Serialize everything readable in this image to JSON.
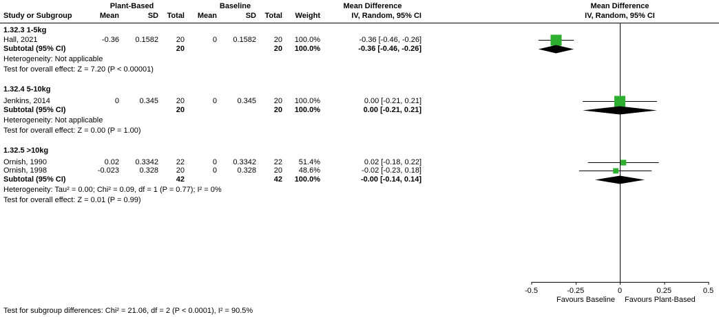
{
  "header": {
    "group_plant": "Plant-Based",
    "group_baseline": "Baseline",
    "md_stats": "Mean Difference",
    "md_plot": "Mean Difference",
    "study": "Study or Subgroup",
    "mean": "Mean",
    "sd": "SD",
    "total": "Total",
    "weight": "Weight",
    "ci_method": "IV, Random, 95% CI",
    "ci_method_plot": "IV, Random, 95% CI"
  },
  "sections": [
    {
      "title": "1.32.3 1-5kg",
      "rows": [
        {
          "study": "Hall, 2021",
          "mean1": "-0.36",
          "sd1": "0.1582",
          "total1": "20",
          "mean2": "0",
          "sd2": "0.1582",
          "total2": "20",
          "weight": "100.0%",
          "ci": "-0.36 [-0.46, -0.26]"
        }
      ],
      "subtotal": {
        "label": "Subtotal (95% CI)",
        "total1": "20",
        "total2": "20",
        "weight": "100.0%",
        "ci": "-0.36 [-0.46, -0.26]"
      },
      "heterogeneity": "Heterogeneity: Not applicable",
      "overall": "Test for overall effect: Z = 7.20 (P < 0.00001)"
    },
    {
      "title": "1.32.4 5-10kg",
      "rows": [
        {
          "study": "Jenkins, 2014",
          "mean1": "0",
          "sd1": "0.345",
          "total1": "20",
          "mean2": "0",
          "sd2": "0.345",
          "total2": "20",
          "weight": "100.0%",
          "ci": "0.00 [-0.21, 0.21]"
        }
      ],
      "subtotal": {
        "label": "Subtotal (95% CI)",
        "total1": "20",
        "total2": "20",
        "weight": "100.0%",
        "ci": "0.00 [-0.21, 0.21]"
      },
      "heterogeneity": "Heterogeneity: Not applicable",
      "overall": "Test for overall effect: Z = 0.00 (P = 1.00)"
    },
    {
      "title": "1.32.5 >10kg",
      "rows": [
        {
          "study": "Ornish, 1990",
          "mean1": "0.02",
          "sd1": "0.3342",
          "total1": "22",
          "mean2": "0",
          "sd2": "0.3342",
          "total2": "22",
          "weight": "51.4%",
          "ci": "0.02 [-0.18, 0.22]"
        },
        {
          "study": "Ornish, 1998",
          "mean1": "-0.023",
          "sd1": "0.328",
          "total1": "20",
          "mean2": "0",
          "sd2": "0.328",
          "total2": "20",
          "weight": "48.6%",
          "ci": "-0.02 [-0.23, 0.18]"
        }
      ],
      "subtotal": {
        "label": "Subtotal (95% CI)",
        "total1": "42",
        "total2": "42",
        "weight": "100.0%",
        "ci": "-0.00 [-0.14, 0.14]"
      },
      "heterogeneity": "Heterogeneity: Tau² = 0.00; Chi² = 0.09, df = 1 (P = 0.77); I² = 0%",
      "overall": "Test for overall effect: Z = 0.01 (P = 0.99)"
    }
  ],
  "footer": "Test for subgroup differences: Chi² = 21.06, df = 2 (P < 0.0001), I² = 90.5%",
  "chart_data": {
    "type": "forest",
    "effect_measure": "Mean Difference, IV, Random, 95% CI",
    "xlim": [
      -0.5,
      0.5
    ],
    "tick_values": [
      -0.5,
      -0.25,
      0,
      0.25,
      0.5
    ],
    "tick_labels": [
      "-0.5",
      "-0.25",
      "0",
      "0.25",
      "0.5"
    ],
    "favours_left": "Favours Baseline",
    "favours_right": "Favours Plant-Based",
    "marker_color": "#2eae2e",
    "line_color": "#000000",
    "studies": [
      {
        "name": "Hall, 2021",
        "est": -0.36,
        "lo": -0.46,
        "hi": -0.26,
        "weight": 100.0
      },
      {
        "name": "Jenkins, 2014",
        "est": 0,
        "lo": -0.21,
        "hi": 0.21,
        "weight": 100.0
      },
      {
        "name": "Ornish, 1990",
        "est": 0.02,
        "lo": -0.18,
        "hi": 0.22,
        "weight": 51.4
      },
      {
        "name": "Ornish, 1998",
        "est": -0.023,
        "lo": -0.23,
        "hi": 0.18,
        "weight": 48.6
      }
    ],
    "subtotals": [
      {
        "name": "1.32.3 1-5kg Subtotal",
        "est": -0.36,
        "lo": -0.46,
        "hi": -0.26
      },
      {
        "name": "1.32.4 5-10kg Subtotal",
        "est": 0,
        "lo": -0.21,
        "hi": 0.21
      },
      {
        "name": "1.32.5 >10kg Subtotal",
        "est": 0,
        "lo": -0.14,
        "hi": 0.14
      }
    ]
  }
}
